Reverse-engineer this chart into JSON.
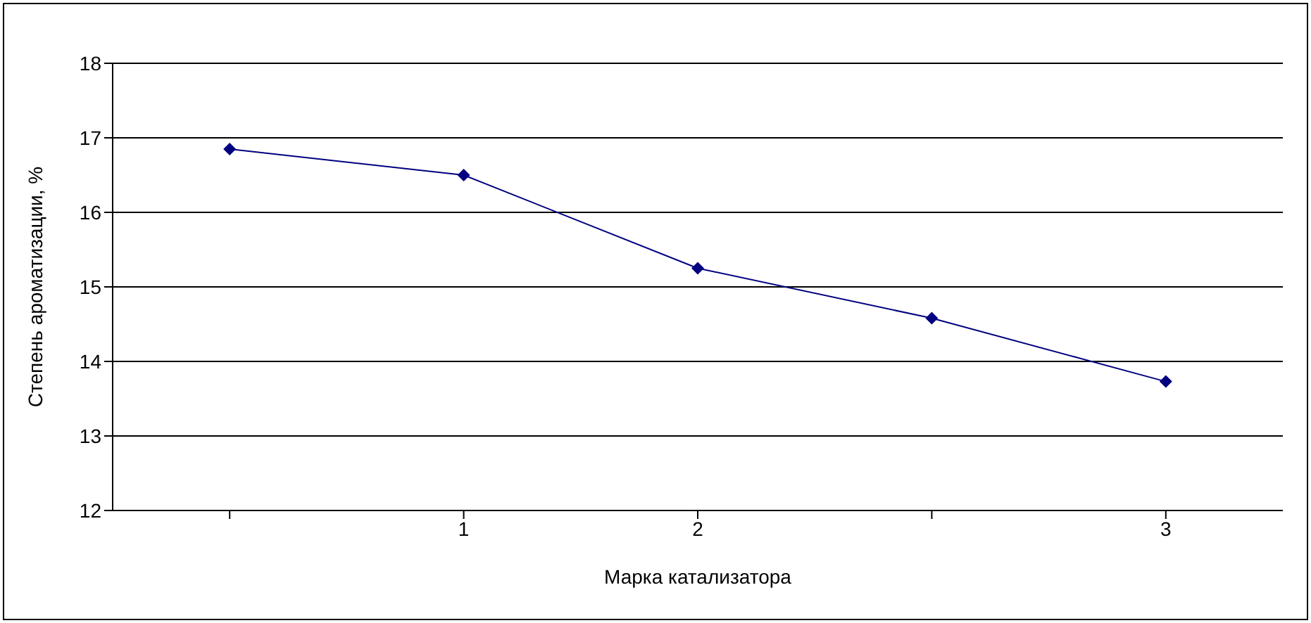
{
  "chart_data": {
    "type": "line",
    "xlabel": "Марка катализатора",
    "ylabel": "Степень ароматизации, %",
    "categories": [
      null,
      "1",
      "2",
      null,
      "3"
    ],
    "series": [
      {
        "color": "#000080",
        "values": [
          16.85,
          16.5,
          15.25,
          14.58,
          13.73
        ]
      }
    ],
    "ylim": [
      12,
      18
    ],
    "yticks": [
      12,
      13,
      14,
      15,
      16,
      17,
      18
    ],
    "grid": "y",
    "marker": "diamond",
    "line_style": "solid",
    "legend": false
  }
}
